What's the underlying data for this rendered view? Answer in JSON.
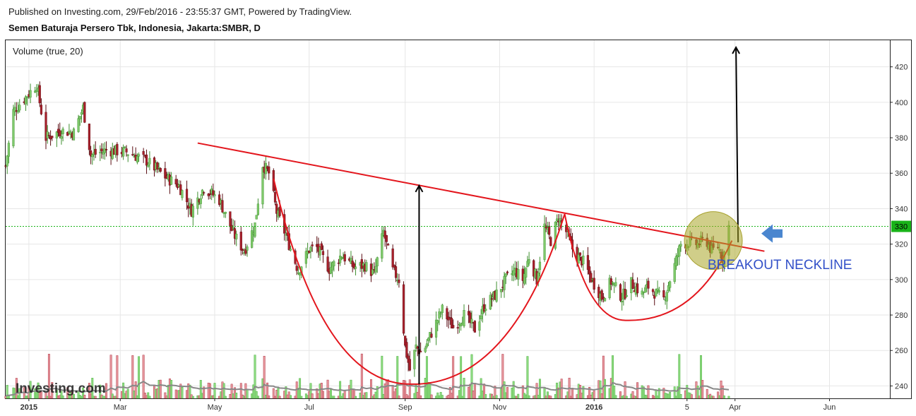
{
  "header": {
    "published": "Published on Investing.com, 29/Feb/2016 - 23:55:37 GMT, Powered by TradingView.",
    "symbol_title": "Semen Baturaja Persero Tbk, Indonesia, Jakarta:SMBR, D"
  },
  "colors": {
    "up": "#7ec96a",
    "down": "#a81f2a",
    "vol_up": "#8fdc82",
    "vol_down": "#e89aa0",
    "trend": "#e3161d",
    "price_line": "#19b319",
    "annotation_text": "#3250c8",
    "arrow_blue": "#4a86cf"
  },
  "chart_data": {
    "type": "candlestick",
    "indicator_label": "Volume (true, 20)",
    "y_ticks": [
      240,
      260,
      280,
      300,
      320,
      340,
      360,
      380,
      400,
      420
    ],
    "x_ticks": [
      "2015",
      "Mar",
      "May",
      "Jul",
      "Sep",
      "Nov",
      "2016",
      "5",
      "Apr",
      "Jun"
    ],
    "last_price": "330",
    "annotation": "BREAKOUT NECKLINE",
    "watermark": "Investing.com",
    "price_path": [
      [
        "2014-12-17",
        364
      ],
      [
        "2014-12-22",
        395
      ],
      [
        "2014-12-31",
        404
      ],
      [
        "2015-01-06",
        410
      ],
      [
        "2015-01-12",
        380
      ],
      [
        "2015-01-22",
        384
      ],
      [
        "2015-01-30",
        383
      ],
      [
        "2015-02-05",
        397
      ],
      [
        "2015-02-10",
        370
      ],
      [
        "2015-02-20",
        373
      ],
      [
        "2015-03-05",
        372
      ],
      [
        "2015-03-18",
        367
      ],
      [
        "2015-03-30",
        358
      ],
      [
        "2015-04-08",
        353
      ],
      [
        "2015-04-16",
        339
      ],
      [
        "2015-04-24",
        352
      ],
      [
        "2015-05-04",
        345
      ],
      [
        "2015-05-13",
        326
      ],
      [
        "2015-05-20",
        316
      ],
      [
        "2015-05-27",
        331
      ],
      [
        "2015-06-01",
        365
      ],
      [
        "2015-06-05",
        360
      ],
      [
        "2015-06-10",
        338
      ],
      [
        "2015-06-16",
        325
      ],
      [
        "2015-06-24",
        305
      ],
      [
        "2015-07-01",
        317
      ],
      [
        "2015-07-06",
        318
      ],
      [
        "2015-07-14",
        306
      ],
      [
        "2015-07-22",
        314
      ],
      [
        "2015-07-30",
        307
      ],
      [
        "2015-08-06",
        308
      ],
      [
        "2015-08-12",
        303
      ],
      [
        "2015-08-18",
        327
      ],
      [
        "2015-08-24",
        305
      ],
      [
        "2015-08-28",
        300
      ],
      [
        "2015-09-01",
        262
      ],
      [
        "2015-09-04",
        249
      ],
      [
        "2015-09-08",
        262
      ],
      [
        "2015-09-12",
        258
      ],
      [
        "2015-09-18",
        270
      ],
      [
        "2015-09-25",
        283
      ],
      [
        "2015-10-02",
        273
      ],
      [
        "2015-10-09",
        280
      ],
      [
        "2015-10-16",
        272
      ],
      [
        "2015-10-22",
        285
      ],
      [
        "2015-10-30",
        292
      ],
      [
        "2015-11-05",
        300
      ],
      [
        "2015-11-11",
        305
      ],
      [
        "2015-11-16",
        300
      ],
      [
        "2015-11-20",
        313
      ],
      [
        "2015-11-25",
        300
      ],
      [
        "2015-11-30",
        330
      ],
      [
        "2015-12-04",
        322
      ],
      [
        "2015-12-09",
        335
      ],
      [
        "2015-12-14",
        327
      ],
      [
        "2015-12-19",
        315
      ],
      [
        "2015-12-25",
        310
      ],
      [
        "2015-12-31",
        299
      ],
      [
        "2016-01-06",
        290
      ],
      [
        "2016-01-12",
        299
      ],
      [
        "2016-01-19",
        290
      ],
      [
        "2016-01-25",
        298
      ],
      [
        "2016-02-01",
        292
      ],
      [
        "2016-02-05",
        296
      ],
      [
        "2016-02-10",
        292
      ],
      [
        "2016-02-15",
        289
      ],
      [
        "2016-02-19",
        300
      ],
      [
        "2016-02-22",
        308
      ],
      [
        "2016-02-26",
        320
      ],
      [
        "2016-03-02",
        321
      ],
      [
        "2016-03-08",
        320
      ],
      [
        "2016-03-13",
        323
      ],
      [
        "2016-03-17",
        316
      ],
      [
        "2016-03-21",
        319
      ],
      [
        "2016-03-24",
        312
      ],
      [
        "2016-03-27",
        322
      ],
      [
        "2016-03-28",
        330
      ]
    ],
    "neckline": [
      [
        "2015-04-20",
        377
      ],
      [
        "2016-04-20",
        316
      ]
    ],
    "cup1": {
      "start": [
        "2015-06-08",
        357
      ],
      "bottom": [
        "2015-09-05",
        241
      ],
      "end": [
        "2015-12-13",
        337
      ]
    },
    "cup2": {
      "start": [
        "2015-12-13",
        337
      ],
      "bottom": [
        "2016-01-22",
        277
      ],
      "end": [
        "2016-03-30",
        322
      ]
    },
    "arrow_targets": [
      {
        "date": "2015-09-10",
        "from": 241,
        "to": 353
      },
      {
        "date": "2016-04-03",
        "from": 321,
        "to": 431
      }
    ],
    "ylim": [
      233,
      435
    ],
    "xlim": [
      "2014-12-17",
      "2016-07-10"
    ]
  }
}
